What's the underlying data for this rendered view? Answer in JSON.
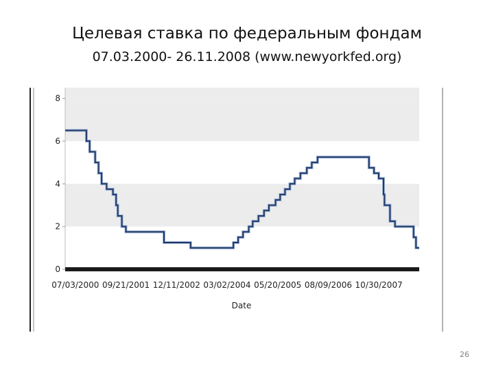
{
  "slide": {
    "title_line1": "Целевая ставка по федеральным фондам",
    "title_line2": "07.03.2000- 26.11.2008 (www.newyorkfed.org)",
    "page_number": "26"
  },
  "chart_data": {
    "type": "line",
    "title": "",
    "xlabel": "Date",
    "ylabel": "",
    "x_tick_labels": [
      "07/03/2000",
      "09/21/2001",
      "12/11/2002",
      "03/02/2004",
      "05/20/2005",
      "08/09/2006",
      "10/30/2007"
    ],
    "y_ticks": [
      0,
      2,
      4,
      6,
      8
    ],
    "ylim": [
      0,
      8.5
    ],
    "xlim": [
      "2000-07-03",
      "2008-11-26"
    ],
    "grid": "alternating horizontal bands",
    "legend": "none",
    "line_color": "#1f3a68",
    "series": [
      {
        "x": [
          "2000-07-03",
          "2001-01-03",
          "2001-01-31",
          "2001-03-20",
          "2001-04-18",
          "2001-05-15",
          "2001-06-27",
          "2001-08-21",
          "2001-09-17",
          "2001-10-02",
          "2001-11-06",
          "2001-12-11",
          "2002-11-06",
          "2003-06-25",
          "2004-06-30",
          "2004-08-10",
          "2004-09-21",
          "2004-11-10",
          "2004-12-14",
          "2005-02-02",
          "2005-03-22",
          "2005-05-03",
          "2005-06-30",
          "2005-08-09",
          "2005-09-20",
          "2005-11-01",
          "2005-12-13",
          "2006-01-31",
          "2006-03-28",
          "2006-05-10",
          "2006-06-29",
          "2007-09-18",
          "2007-10-31",
          "2007-12-11",
          "2008-01-22",
          "2008-01-30",
          "2008-03-18",
          "2008-04-30",
          "2008-10-08",
          "2008-10-29",
          "2008-11-26"
        ],
        "y": [
          6.5,
          6.0,
          5.5,
          5.0,
          4.5,
          4.0,
          3.75,
          3.5,
          3.0,
          2.5,
          2.0,
          1.75,
          1.25,
          1.0,
          1.25,
          1.5,
          1.75,
          2.0,
          2.25,
          2.5,
          2.75,
          3.0,
          3.25,
          3.5,
          3.75,
          4.0,
          4.25,
          4.5,
          4.75,
          5.0,
          5.25,
          4.75,
          4.5,
          4.25,
          3.5,
          3.0,
          2.25,
          2.0,
          1.5,
          1.0,
          1.0
        ]
      }
    ]
  }
}
